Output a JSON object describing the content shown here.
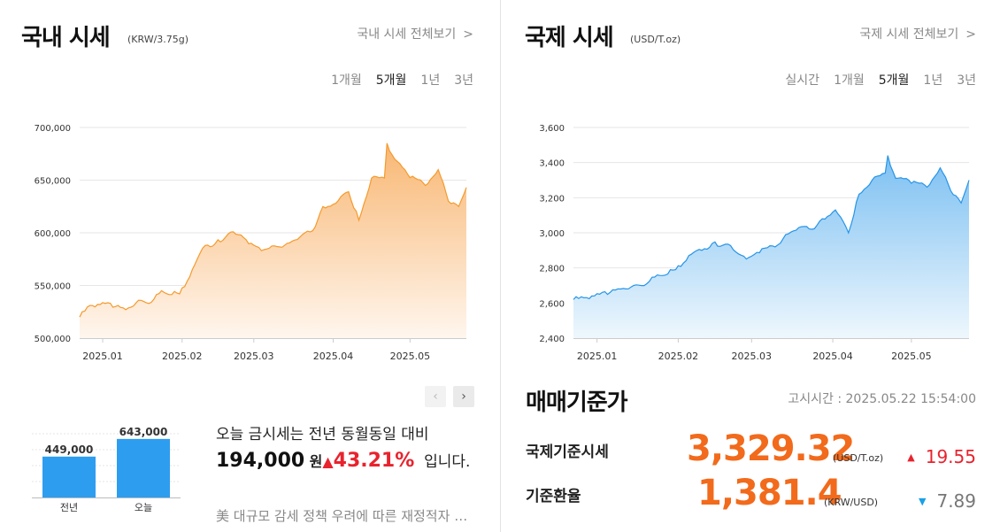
{
  "domestic": {
    "title": "국내 시세",
    "unit": "(KRW/3.75g)",
    "view_all": "국내 시세 전체보기",
    "tabs": [
      "1개월",
      "5개월",
      "1년",
      "3년"
    ],
    "active_tab": "5개월",
    "colors": {
      "line": "#f59a2c",
      "fill_top": "#f8b773",
      "fill_bottom": "#fff6ee"
    },
    "bar_compare": {
      "categories": [
        "전년",
        "오늘"
      ],
      "values": [
        449000,
        643000
      ],
      "labels": [
        "449,000",
        "643,000"
      ],
      "color": "#2d9df0"
    },
    "today": {
      "prefix": "오늘 금시세는 전년 동월동일 대비",
      "diff": "194,000",
      "won": "원",
      "arrow": "▲",
      "pct": "43.21%",
      "suffix": "입니다."
    },
    "news": "美 대규모 감세 정책 우려에 따른 재정적자 확대 우려"
  },
  "international": {
    "title": "국제 시세",
    "unit": "(USD/T.oz)",
    "view_all": "국제 시세 전체보기",
    "tabs": [
      "실시간",
      "1개월",
      "5개월",
      "1년",
      "3년"
    ],
    "active_tab": "5개월",
    "colors": {
      "line": "#2795e8",
      "fill_top": "#7cc0f2",
      "fill_bottom": "#eef7fd"
    }
  },
  "standard": {
    "title": "매매기준가",
    "time": "고시시간 : 2025.05.22 15:54:00",
    "rows": [
      {
        "label": "국제기준시세",
        "value": "3,329.32",
        "unit": "(USD/T.oz)",
        "arrow": "▲",
        "change": "19.55",
        "dir": "up"
      },
      {
        "label": "기준환율",
        "value": "1,381.4",
        "unit": "(KRW/USD)",
        "arrow": "▼",
        "change": "7.89",
        "dir": "down"
      }
    ]
  },
  "chart_data": [
    {
      "type": "area",
      "title": "국내 시세",
      "ylim": [
        500000,
        700000
      ],
      "y_ticks": [
        500000,
        550000,
        600000,
        650000,
        700000
      ],
      "y_tick_labels": [
        "500,000",
        "550,000",
        "600,000",
        "650,000",
        "700,000"
      ],
      "x_tick_labels": [
        "2025.01",
        "2025.02",
        "2025.03",
        "2025.04",
        "2025.05"
      ],
      "x_tick_dates": [
        "2025-01-01",
        "2025-02-01",
        "2025-03-01",
        "2025-04-01",
        "2025-05-01"
      ],
      "x_range": [
        "2024-12-23",
        "2025-05-23"
      ],
      "grid": true,
      "x": [
        "2024-12-23",
        "2024-12-27",
        "2025-01-02",
        "2025-01-06",
        "2025-01-10",
        "2025-01-15",
        "2025-01-20",
        "2025-01-24",
        "2025-01-31",
        "2025-02-05",
        "2025-02-10",
        "2025-02-14",
        "2025-02-19",
        "2025-02-24",
        "2025-02-28",
        "2025-03-05",
        "2025-03-10",
        "2025-03-14",
        "2025-03-19",
        "2025-03-24",
        "2025-03-28",
        "2025-04-02",
        "2025-04-07",
        "2025-04-11",
        "2025-04-16",
        "2025-04-21",
        "2025-04-22",
        "2025-04-25",
        "2025-04-30",
        "2025-05-07",
        "2025-05-12",
        "2025-05-16",
        "2025-05-20",
        "2025-05-23"
      ],
      "values": [
        520000,
        531000,
        533000,
        530000,
        527000,
        536000,
        534000,
        545000,
        542000,
        565000,
        588000,
        590000,
        599000,
        598000,
        590000,
        584000,
        587000,
        590000,
        596000,
        602000,
        625000,
        628000,
        639000,
        612000,
        652000,
        652000,
        685000,
        670000,
        656000,
        645000,
        660000,
        630000,
        625000,
        643000
      ]
    },
    {
      "type": "area",
      "title": "국제 시세",
      "ylim": [
        2400,
        3600
      ],
      "y_ticks": [
        2400,
        2600,
        2800,
        3000,
        3200,
        3400,
        3600
      ],
      "y_tick_labels": [
        "2,400",
        "2,600",
        "2,800",
        "3,000",
        "3,200",
        "3,400",
        "3,600"
      ],
      "x_tick_labels": [
        "2025.01",
        "2025.02",
        "2025.03",
        "2025.04",
        "2025.05"
      ],
      "x_tick_dates": [
        "2025-01-01",
        "2025-02-01",
        "2025-03-01",
        "2025-04-01",
        "2025-05-01"
      ],
      "x_range": [
        "2024-12-23",
        "2025-05-23"
      ],
      "grid": true,
      "x": [
        "2024-12-23",
        "2024-12-27",
        "2025-01-02",
        "2025-01-06",
        "2025-01-10",
        "2025-01-15",
        "2025-01-20",
        "2025-01-24",
        "2025-01-31",
        "2025-02-05",
        "2025-02-10",
        "2025-02-14",
        "2025-02-19",
        "2025-02-24",
        "2025-02-28",
        "2025-03-05",
        "2025-03-10",
        "2025-03-14",
        "2025-03-19",
        "2025-03-24",
        "2025-03-28",
        "2025-04-02",
        "2025-04-07",
        "2025-04-11",
        "2025-04-16",
        "2025-04-21",
        "2025-04-22",
        "2025-04-25",
        "2025-04-30",
        "2025-05-07",
        "2025-05-12",
        "2025-05-16",
        "2025-05-20",
        "2025-05-23"
      ],
      "values": [
        2620,
        2630,
        2650,
        2660,
        2680,
        2700,
        2710,
        2760,
        2790,
        2870,
        2900,
        2940,
        2935,
        2880,
        2860,
        2910,
        2920,
        2990,
        3030,
        3020,
        3080,
        3130,
        3000,
        3220,
        3300,
        3340,
        3440,
        3310,
        3300,
        3260,
        3370,
        3240,
        3170,
        3300
      ]
    },
    {
      "type": "bar",
      "categories": [
        "전년",
        "오늘"
      ],
      "values": [
        449000,
        643000
      ]
    }
  ]
}
